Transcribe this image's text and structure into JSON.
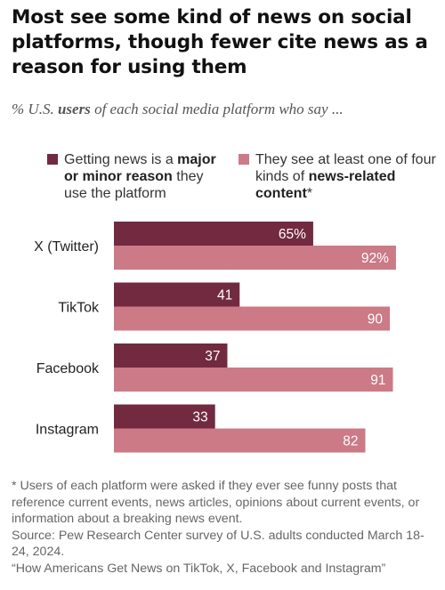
{
  "title": "Most see some kind of news on social platforms, though fewer cite news as a reason for using them",
  "subtitle": {
    "prefix": "% U.S. ",
    "bold": "users",
    "suffix": " of each social media platform who say ..."
  },
  "legend": [
    {
      "pre": "Getting news is a ",
      "bold": "major or minor reason",
      "post": " they use the platform",
      "color": "#722a40"
    },
    {
      "pre": "They see at least one of four kinds of ",
      "bold": "news-related content",
      "post": "*",
      "color": "#cb7a86"
    }
  ],
  "chart_data": {
    "type": "bar",
    "orientation": "horizontal",
    "categories": [
      "X (Twitter)",
      "TikTok",
      "Facebook",
      "Instagram"
    ],
    "series": [
      {
        "values": [
          65,
          41,
          37,
          33
        ],
        "labels": [
          "65%",
          "41",
          "37",
          "33"
        ],
        "color": "#722a40"
      },
      {
        "values": [
          92,
          90,
          91,
          82
        ],
        "labels": [
          "92%",
          "90",
          "91",
          "82"
        ],
        "color": "#cb7a86"
      }
    ],
    "xlim": [
      0,
      100
    ],
    "grid": false
  },
  "footnote": [
    "* Users of each platform were asked if they ever see funny posts that reference current events, news articles, opinions about current events, or information about a breaking news event.",
    "Source: Pew Research Center survey of U.S. adults conducted March 18-24, 2024.",
    "“How Americans Get News on TikTok, X, Facebook and Instagram”"
  ]
}
